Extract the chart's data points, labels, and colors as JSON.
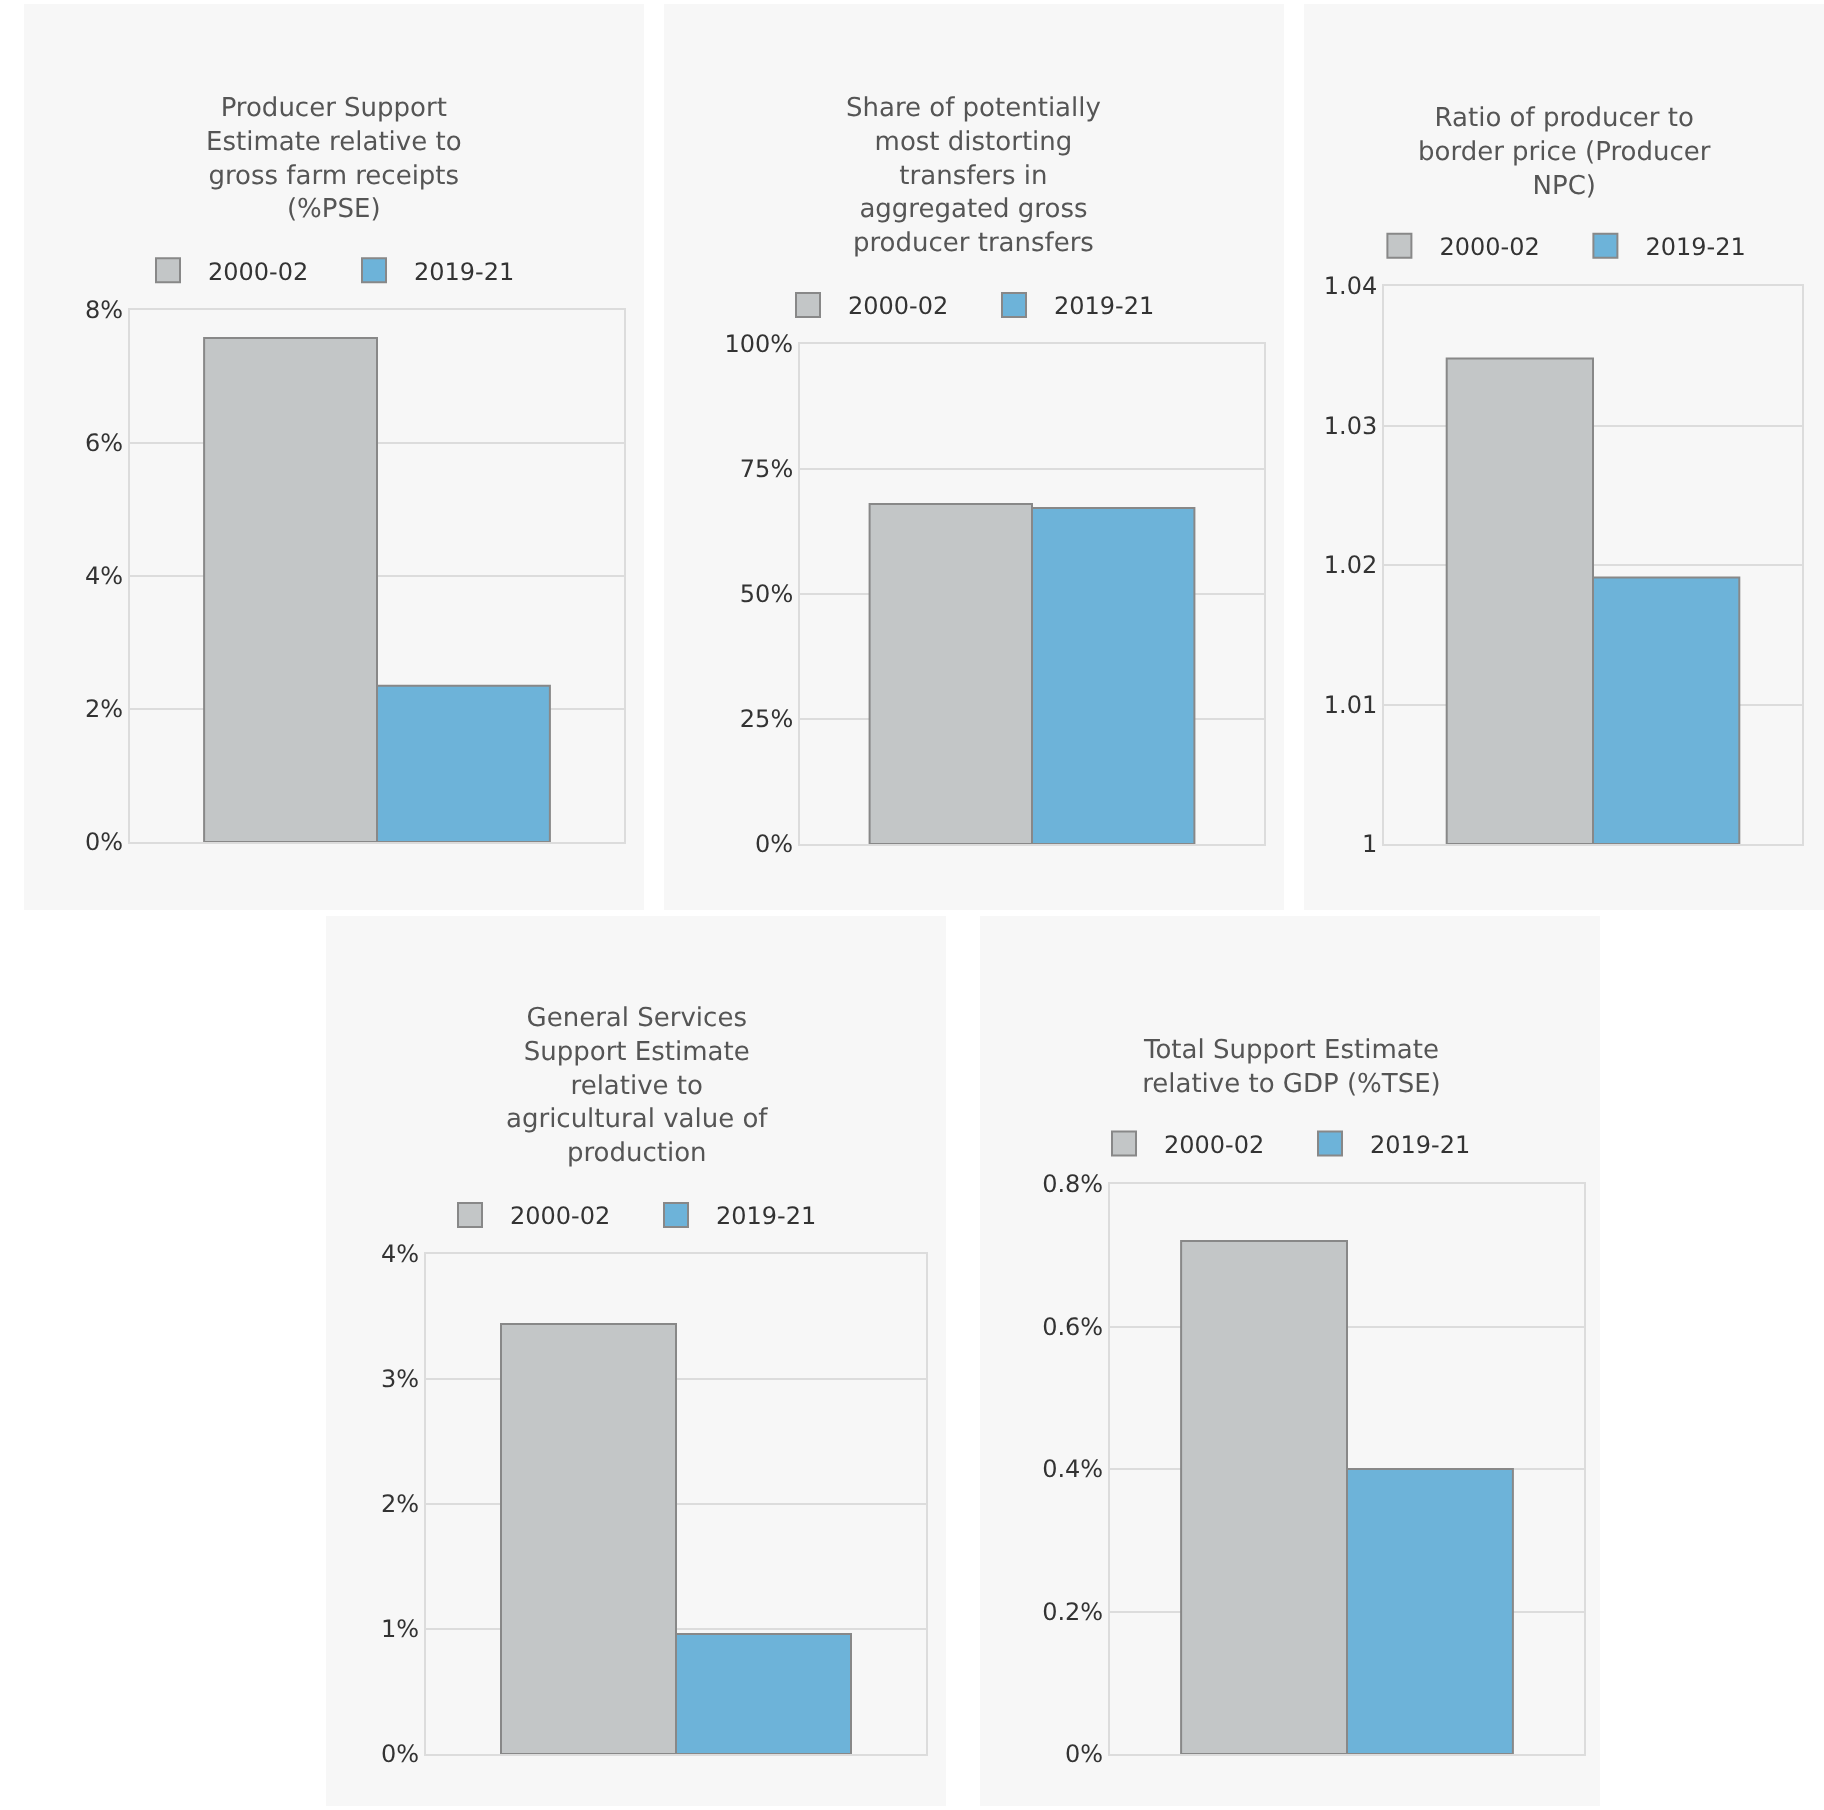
{
  "chart_data": [
    {
      "type": "bar",
      "title": "Producer Support Estimate relative to gross farm receipts (%PSE)",
      "categories": [
        null
      ],
      "series": [
        {
          "name": "2000-02",
          "color": "#c3c6c7",
          "values": [
            7.58
          ]
        },
        {
          "name": "2019-21",
          "color": "#6db3d9",
          "values": [
            2.35
          ]
        }
      ],
      "ylim": [
        0,
        8
      ],
      "yticks": [
        {
          "value": 0,
          "label": "0%"
        },
        {
          "value": 2,
          "label": "2%"
        },
        {
          "value": 4,
          "label": "4%"
        },
        {
          "value": 6,
          "label": "6%"
        },
        {
          "value": 8,
          "label": "8%"
        }
      ],
      "grid": "y",
      "legend": "top",
      "tick_labels": "y"
    },
    {
      "type": "bar",
      "title": "Share of potentially most distorting transfers in aggregated gross producer transfers",
      "categories": [
        null
      ],
      "series": [
        {
          "name": "2000-02",
          "color": "#c3c6c7",
          "values": [
            68
          ]
        },
        {
          "name": "2019-21",
          "color": "#6db3d9",
          "values": [
            67.2
          ]
        }
      ],
      "ylim": [
        0,
        100
      ],
      "yticks": [
        {
          "value": 0,
          "label": "0%"
        },
        {
          "value": 25,
          "label": "25%"
        },
        {
          "value": 50,
          "label": "50%"
        },
        {
          "value": 75,
          "label": "75%"
        },
        {
          "value": 100,
          "label": "100%"
        }
      ],
      "grid": "y",
      "legend": "top",
      "tick_labels": "y"
    },
    {
      "type": "bar",
      "title": "Ratio of producer to border price (Producer NPC)",
      "categories": [
        null
      ],
      "series": [
        {
          "name": "2000-02",
          "color": "#c3c6c7",
          "values": [
            1.0348
          ]
        },
        {
          "name": "2019-21",
          "color": "#6db3d9",
          "values": [
            1.0191
          ]
        }
      ],
      "ylim": [
        1,
        1.04
      ],
      "yticks": [
        1,
        1.01,
        1.02,
        1.03,
        1.04
      ],
      "grid": "y",
      "legend": "top",
      "tick_labels": "y"
    },
    {
      "type": "bar",
      "title": "General Services Support Estimate relative to agricultural value of production",
      "categories": [
        null
      ],
      "series": [
        {
          "name": "2000-02",
          "color": "#c3c6c7",
          "values": [
            3.44
          ]
        },
        {
          "name": "2019-21",
          "color": "#6db3d9",
          "values": [
            0.96
          ]
        }
      ],
      "ylim": [
        0,
        4
      ],
      "yticks": [
        {
          "value": 0,
          "label": "0%"
        },
        {
          "value": 1,
          "label": "1%"
        },
        {
          "value": 2,
          "label": "2%"
        },
        {
          "value": 3,
          "label": "3%"
        },
        {
          "value": 4,
          "label": "4%"
        }
      ],
      "grid": "y",
      "legend": "top",
      "tick_labels": "y"
    },
    {
      "type": "bar",
      "title": "Total Support Estimate relative to GDP (%TSE)",
      "categories": [
        null
      ],
      "series": [
        {
          "name": "2000-02",
          "color": "#c3c6c7",
          "values": [
            0.72
          ]
        },
        {
          "name": "2019-21",
          "color": "#6db3d9",
          "values": [
            0.4
          ]
        }
      ],
      "ylim": [
        0,
        0.8
      ],
      "yticks": [
        {
          "value": 0,
          "label": "0%"
        },
        {
          "value": 0.2,
          "label": "0.2%"
        },
        {
          "value": 0.4,
          "label": "0.4%"
        },
        {
          "value": 0.6,
          "label": "0.6%"
        },
        {
          "value": 0.8,
          "label": "0.8%"
        }
      ],
      "grid": "y",
      "legend": "top",
      "tick_labels": "y"
    }
  ]
}
